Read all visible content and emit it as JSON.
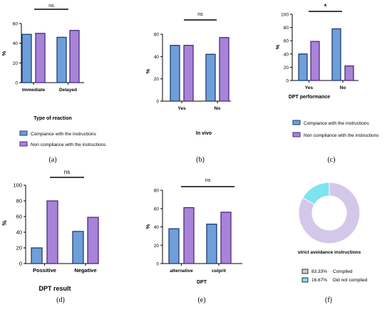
{
  "colors": {
    "compliance_fill": "#6f9fd8",
    "compliance_stroke": "#1c3b7a",
    "noncompliance_fill": "#a883d8",
    "noncompliance_stroke": "#4a2a82",
    "donut_complied": "#d4c8ea",
    "donut_not_complied": "#7fe3f0"
  },
  "legend": {
    "compliance": "Compiance with the instructions",
    "noncompliance": "Non compliance with the instructions"
  },
  "chart_data": [
    {
      "id": "a",
      "type": "bar",
      "panel_label": "(a)",
      "categories": [
        "Immediate",
        "Delayed"
      ],
      "series": [
        {
          "name": "Compiance with the instructions",
          "values": [
            49,
            46
          ]
        },
        {
          "name": "Non compliance with the instructions",
          "values": [
            50,
            53
          ]
        }
      ],
      "xlabel": "Type of reaction",
      "ylabel": "%",
      "ylim": [
        0,
        60
      ],
      "yticks": [
        "0",
        "20",
        "40",
        "60"
      ],
      "significance": "ns",
      "legend": "bottom"
    },
    {
      "id": "b",
      "type": "bar",
      "panel_label": "(b)",
      "categories": [
        "Yes",
        "No"
      ],
      "series": [
        {
          "name": "Compiance with the instructions",
          "values": [
            50,
            42
          ]
        },
        {
          "name": "Non compliance with the instructions",
          "values": [
            50,
            57
          ]
        }
      ],
      "xlabel": "In vivo",
      "ylabel": "%",
      "ylim": [
        0,
        60
      ],
      "yticks": [
        "0",
        "20",
        "40",
        "60"
      ],
      "significance": "ns"
    },
    {
      "id": "c",
      "type": "bar",
      "panel_label": "(c)",
      "categories": [
        "Yes",
        "No"
      ],
      "series": [
        {
          "name": "Compiance with the instructions",
          "values": [
            40,
            78
          ]
        },
        {
          "name": "Non compliance with the instructions",
          "values": [
            59,
            22
          ]
        }
      ],
      "xlabel": "DPT performance",
      "ylabel": "%",
      "ylim": [
        0,
        100
      ],
      "yticks": [
        "0",
        "20",
        "40",
        "60",
        "80",
        "100"
      ],
      "significance": "*",
      "legend": "bottom"
    },
    {
      "id": "d",
      "type": "bar",
      "panel_label": "(d)",
      "categories": [
        "Possitive",
        "Negative"
      ],
      "series": [
        {
          "name": "Compiance with the instructions",
          "values": [
            20,
            41
          ]
        },
        {
          "name": "Non compliance with the instructions",
          "values": [
            80,
            59
          ]
        }
      ],
      "xlabel": "DPT result",
      "ylabel": "%",
      "ylim": [
        0,
        100
      ],
      "yticks": [
        "0",
        "20",
        "40",
        "60",
        "80",
        "100"
      ],
      "significance": "ns"
    },
    {
      "id": "e",
      "type": "bar",
      "panel_label": "(e)",
      "categories": [
        "alternative",
        "culprit"
      ],
      "series": [
        {
          "name": "Compiance with the instructions",
          "values": [
            38,
            43
          ]
        },
        {
          "name": "Non compliance with the instructions",
          "values": [
            61,
            56
          ]
        }
      ],
      "xlabel": "DPT",
      "ylabel": "%",
      "ylim": [
        0,
        80
      ],
      "yticks": [
        "0",
        "20",
        "40",
        "60",
        "80"
      ],
      "significance": "ns"
    },
    {
      "id": "f",
      "type": "pie",
      "panel_label": "(f)",
      "xlabel": "strict avoidance instructions",
      "slices": [
        {
          "label": "Complied",
          "value": 83.33,
          "pct_text": "83.33%",
          "color": "#d4c8ea"
        },
        {
          "label": "Did not complied",
          "value": 16.67,
          "pct_text": "16.67%",
          "color": "#7fe3f0"
        }
      ]
    }
  ]
}
